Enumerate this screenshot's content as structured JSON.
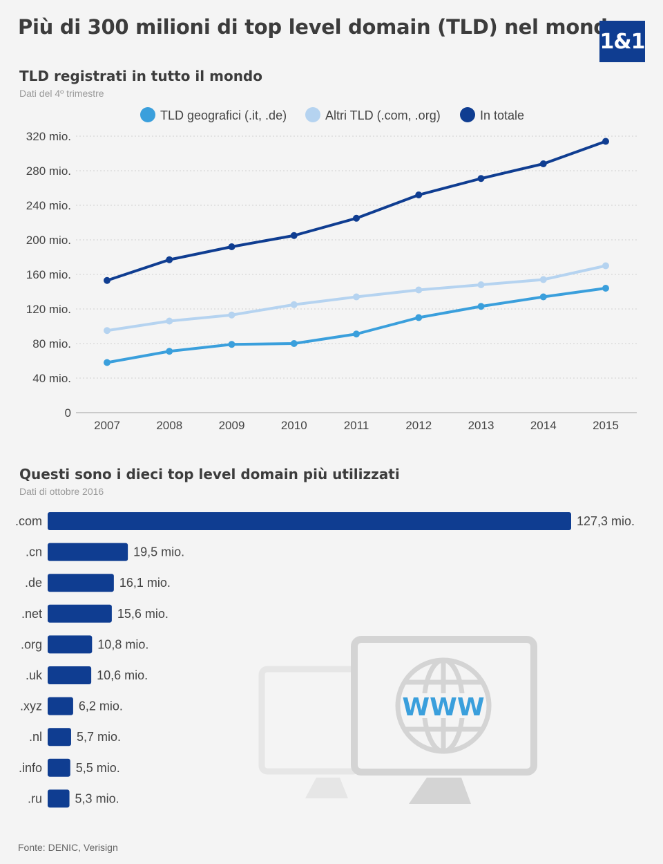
{
  "header": {
    "title": "Più di 300 milioni di top level domain (TLD) nel mondo",
    "logo_text": "1&1"
  },
  "chart1": {
    "title": "TLD registrati in tutto il mondo",
    "subtitle": "Dati del 4º trimestre"
  },
  "chart2": {
    "title": "Questi sono i dieci top level domain più utilizzati",
    "subtitle": "Dati di ottobre 2016"
  },
  "illustration": {
    "www_text": "WWW"
  },
  "footer": {
    "source": "Fonte: DENIC, Verisign"
  },
  "colors": {
    "geo": "#3a9fdc",
    "altri": "#b5d3f0",
    "totale": "#0f3d91",
    "bar": "#0f3d91"
  },
  "chart_data": [
    {
      "type": "line",
      "x": [
        "2007",
        "2008",
        "2009",
        "2010",
        "2011",
        "2012",
        "2013",
        "2014",
        "2015"
      ],
      "series": [
        {
          "name": "TLD geografici (.it, .de)",
          "values": [
            58,
            71,
            79,
            80,
            91,
            110,
            123,
            134,
            144
          ]
        },
        {
          "name": "Altri TLD (.com, .org)",
          "values": [
            95,
            106,
            113,
            125,
            134,
            142,
            148,
            154,
            170
          ]
        },
        {
          "name": "In totale",
          "values": [
            153,
            177,
            192,
            205,
            225,
            252,
            271,
            288,
            314
          ]
        }
      ],
      "yticks": [
        0,
        40,
        80,
        120,
        160,
        200,
        240,
        280,
        320
      ],
      "ytick_labels": [
        "0",
        "40 mio.",
        "80 mio.",
        "120 mio.",
        "160 mio.",
        "200 mio.",
        "240 mio.",
        "280 mio.",
        "320 mio."
      ],
      "ylim": [
        0,
        320
      ],
      "legend": "top",
      "grid": true
    },
    {
      "type": "bar",
      "orientation": "horizontal",
      "categories": [
        ".com",
        ".cn",
        ".de",
        ".net",
        ".org",
        ".uk",
        ".xyz",
        ".nl",
        ".info",
        ".ru"
      ],
      "values": [
        127.3,
        19.5,
        16.1,
        15.6,
        10.8,
        10.6,
        6.2,
        5.7,
        5.5,
        5.3
      ],
      "value_labels": [
        "127,3 mio.",
        "19,5 mio.",
        "16,1 mio.",
        "15,6 mio.",
        "10,8 mio.",
        "10,6 mio.",
        "6,2 mio.",
        "5,7 mio.",
        "5,5 mio.",
        "5,3 mio."
      ]
    }
  ]
}
